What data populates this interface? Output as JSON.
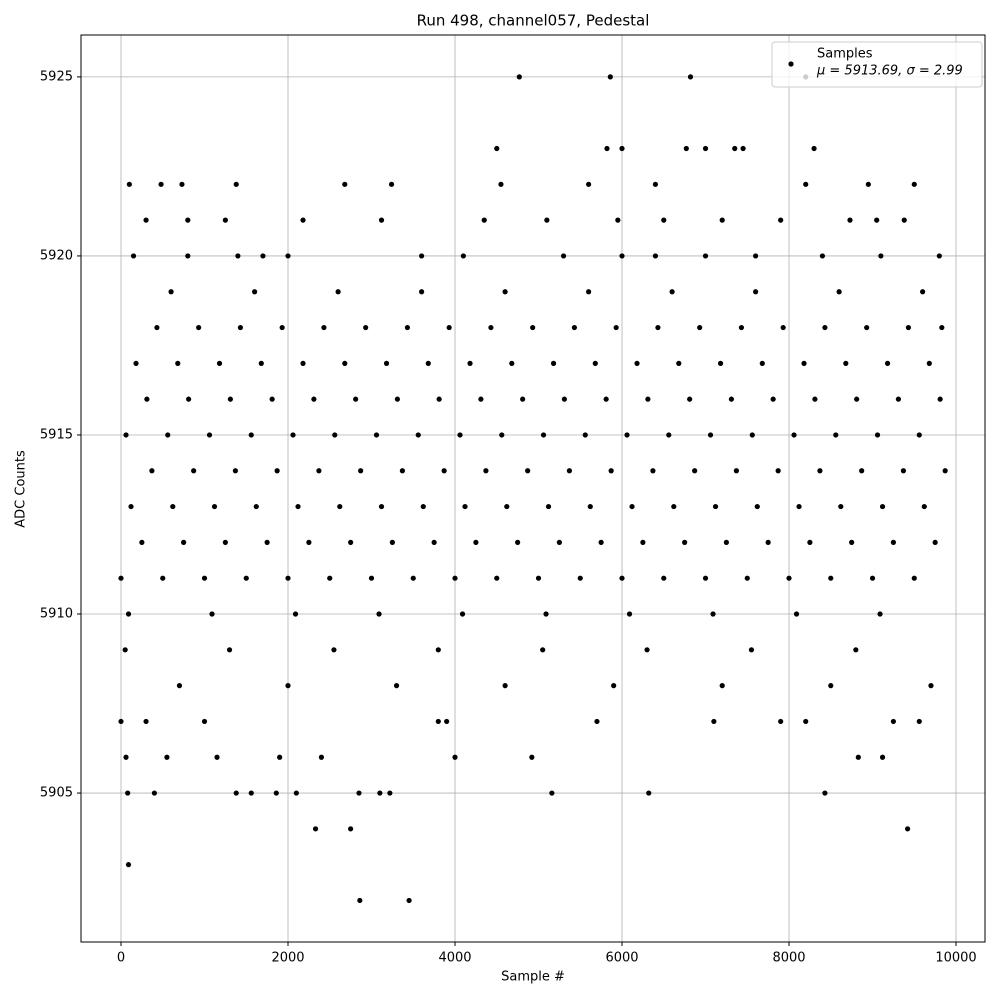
{
  "chart_data": {
    "type": "scatter",
    "title": "Run 498, channel057, Pedestal",
    "x_label": "Sample #",
    "y_label": "ADC Counts",
    "legend": {
      "name": "Samples",
      "stats": "μ = 5913.69, σ = 2.99",
      "position": "upper right"
    },
    "color": "#000000",
    "grid": true,
    "xlim": [
      -479,
      10347
    ],
    "ylim": [
      5900.84,
      5926.17
    ],
    "xticks": [
      0,
      2000,
      4000,
      6000,
      8000,
      10000
    ],
    "yticks": [
      5905,
      5910,
      5915,
      5920,
      5925
    ],
    "x": [
      0,
      500,
      1000,
      1500,
      2000,
      2500,
      3000,
      3500,
      4000,
      4500,
      5000,
      5500,
      6000,
      6500,
      7000,
      7500,
      8000,
      8500,
      9000,
      9500,
      250,
      750,
      1250,
      1750,
      2250,
      2750,
      3250,
      3750,
      4250,
      4750,
      5250,
      5750,
      6250,
      6750,
      7250,
      7750,
      8250,
      8750,
      9250,
      9750,
      120,
      620,
      1120,
      1620,
      2120,
      2620,
      3120,
      3620,
      4120,
      4620,
      5120,
      5620,
      6120,
      6620,
      7120,
      7620,
      8120,
      8620,
      9120,
      9620,
      370,
      870,
      1370,
      1870,
      2370,
      2870,
      3370,
      3870,
      4370,
      4870,
      5370,
      5870,
      6370,
      6870,
      7370,
      7870,
      8370,
      8870,
      9370,
      9870,
      60,
      560,
      1060,
      1560,
      2060,
      2560,
      3060,
      3560,
      4060,
      4560,
      5060,
      5560,
      6060,
      6560,
      7060,
      7560,
      8060,
      8560,
      9060,
      9560,
      310,
      810,
      1310,
      1810,
      2310,
      2810,
      3310,
      3810,
      4310,
      4810,
      5310,
      5810,
      6310,
      6810,
      7310,
      7810,
      8310,
      8810,
      9310,
      9810,
      180,
      680,
      1180,
      1680,
      2180,
      2680,
      3180,
      3680,
      4180,
      4680,
      5180,
      5680,
      6180,
      6680,
      7180,
      7680,
      8180,
      8680,
      9180,
      9680,
      430,
      930,
      1430,
      1930,
      2430,
      2930,
      3430,
      3930,
      4430,
      4930,
      5430,
      5930,
      6430,
      6930,
      7430,
      7930,
      8430,
      8930,
      9430,
      9830,
      90,
      1090,
      2090,
      3090,
      4090,
      5090,
      6090,
      7090,
      8090,
      9090,
      600,
      1600,
      2600,
      3600,
      4600,
      5600,
      6600,
      7600,
      8600,
      9600,
      50,
      1300,
      2550,
      3800,
      5050,
      6300,
      7550,
      8800,
      700,
      2000,
      3300,
      4600,
      5900,
      7200,
      8500,
      9700,
      0,
      60,
      80,
      90,
      100,
      400,
      480,
      730,
      1380,
      2180,
      2330,
      2680,
      2750,
      2860,
      3450,
      3240,
      4770,
      5860,
      6820,
      8200,
      4500,
      5820,
      6000,
      6770,
      7000,
      7350,
      8300,
      8430,
      9420,
      6320,
      5160,
      2850,
      3100,
      1860,
      1560,
      2100,
      1380,
      3220,
      4920,
      8830,
      9120,
      9560,
      7900,
      8200,
      4000,
      3800,
      1000,
      300,
      5700,
      7100,
      9250,
      550,
      1150,
      1900,
      2400,
      3900,
      7450,
      8200,
      9500,
      8950,
      5600,
      6400,
      4550,
      300,
      800,
      1250,
      3120,
      4350,
      5100,
      5950,
      6500,
      7200,
      7900,
      8730,
      9050,
      9380,
      150,
      800,
      1400,
      1700,
      2000,
      3600,
      4100,
      5300,
      6000,
      6400,
      7000,
      7600,
      8400,
      9100,
      9800
    ],
    "values": [
      5911,
      5911,
      5911,
      5911,
      5911,
      5911,
      5911,
      5911,
      5911,
      5911,
      5911,
      5911,
      5911,
      5911,
      5911,
      5911,
      5911,
      5911,
      5911,
      5911,
      5912,
      5912,
      5912,
      5912,
      5912,
      5912,
      5912,
      5912,
      5912,
      5912,
      5912,
      5912,
      5912,
      5912,
      5912,
      5912,
      5912,
      5912,
      5912,
      5912,
      5913,
      5913,
      5913,
      5913,
      5913,
      5913,
      5913,
      5913,
      5913,
      5913,
      5913,
      5913,
      5913,
      5913,
      5913,
      5913,
      5913,
      5913,
      5913,
      5913,
      5914,
      5914,
      5914,
      5914,
      5914,
      5914,
      5914,
      5914,
      5914,
      5914,
      5914,
      5914,
      5914,
      5914,
      5914,
      5914,
      5914,
      5914,
      5914,
      5914,
      5915,
      5915,
      5915,
      5915,
      5915,
      5915,
      5915,
      5915,
      5915,
      5915,
      5915,
      5915,
      5915,
      5915,
      5915,
      5915,
      5915,
      5915,
      5915,
      5915,
      5916,
      5916,
      5916,
      5916,
      5916,
      5916,
      5916,
      5916,
      5916,
      5916,
      5916,
      5916,
      5916,
      5916,
      5916,
      5916,
      5916,
      5916,
      5916,
      5916,
      5917,
      5917,
      5917,
      5917,
      5917,
      5917,
      5917,
      5917,
      5917,
      5917,
      5917,
      5917,
      5917,
      5917,
      5917,
      5917,
      5917,
      5917,
      5917,
      5917,
      5918,
      5918,
      5918,
      5918,
      5918,
      5918,
      5918,
      5918,
      5918,
      5918,
      5918,
      5918,
      5918,
      5918,
      5918,
      5918,
      5918,
      5918,
      5918,
      5918,
      5910,
      5910,
      5910,
      5910,
      5910,
      5910,
      5910,
      5910,
      5910,
      5910,
      5919,
      5919,
      5919,
      5919,
      5919,
      5919,
      5919,
      5919,
      5919,
      5919,
      5909,
      5909,
      5909,
      5909,
      5909,
      5909,
      5909,
      5909,
      5908,
      5908,
      5908,
      5908,
      5908,
      5908,
      5908,
      5908,
      5907,
      5906,
      5905,
      5903,
      5922,
      5905,
      5922,
      5922,
      5922,
      5921,
      5904,
      5922,
      5904,
      5902,
      5902,
      5922,
      5925,
      5925,
      5925,
      5925,
      5923,
      5923,
      5923,
      5923,
      5923,
      5923,
      5923,
      5905,
      5904,
      5905,
      5905,
      5905,
      5905,
      5905,
      5905,
      5905,
      5905,
      5905,
      5906,
      5906,
      5906,
      5907,
      5907,
      5907,
      5906,
      5907,
      5907,
      5907,
      5907,
      5907,
      5907,
      5906,
      5906,
      5906,
      5906,
      5907,
      5923,
      5922,
      5922,
      5922,
      5922,
      5922,
      5922,
      5921,
      5921,
      5921,
      5921,
      5921,
      5921,
      5921,
      5921,
      5921,
      5921,
      5921,
      5921,
      5921,
      5920,
      5920,
      5920,
      5920,
      5920,
      5920,
      5920,
      5920,
      5920,
      5920,
      5920,
      5920,
      5920,
      5920,
      5920
    ]
  }
}
